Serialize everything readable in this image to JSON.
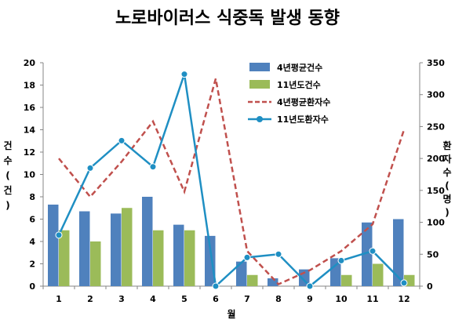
{
  "chart_data": {
    "type": "bar",
    "title": "노로바이러스 식중독 발생 동향",
    "xlabel": "월",
    "ylabel_left": [
      "건",
      "수",
      "(",
      "건",
      ")"
    ],
    "ylabel_right": [
      "환",
      "자",
      "수",
      "(",
      "명",
      ")"
    ],
    "categories": [
      "1",
      "2",
      "3",
      "4",
      "5",
      "6",
      "7",
      "8",
      "9",
      "10",
      "11",
      "12"
    ],
    "ylim_left": [
      0,
      20
    ],
    "yticks_left": [
      0,
      2,
      4,
      6,
      8,
      10,
      12,
      14,
      16,
      18,
      20
    ],
    "ylim_right": [
      0,
      350
    ],
    "yticks_right": [
      0,
      50,
      100,
      150,
      200,
      250,
      300,
      350
    ],
    "series": [
      {
        "name": "4년평균건수",
        "kind": "bar",
        "axis": "left",
        "color": "#4f81bd",
        "values": [
          7.3,
          6.7,
          6.5,
          8.0,
          5.5,
          4.5,
          2.2,
          0.7,
          1.5,
          2.5,
          5.7,
          6.0
        ]
      },
      {
        "name": "11년도건수",
        "kind": "bar",
        "axis": "left",
        "color": "#9bbb59",
        "values": [
          5.0,
          4.0,
          7.0,
          5.0,
          5.0,
          0,
          1.0,
          0,
          0,
          1.0,
          2.0,
          1.0
        ]
      },
      {
        "name": "4년평균환자수",
        "kind": "line",
        "style": "dashed",
        "axis": "right",
        "color": "#c0504d",
        "values": [
          200,
          140,
          195,
          258,
          148,
          325,
          55,
          3,
          25,
          55,
          97,
          245
        ]
      },
      {
        "name": "11년도환자수",
        "kind": "line",
        "style": "marker",
        "axis": "right",
        "color": "#1f8fc3",
        "values": [
          80,
          185,
          228,
          187,
          332,
          0,
          45,
          50,
          0,
          40,
          55,
          5
        ]
      }
    ],
    "legend_position": "top-right",
    "grid": false
  }
}
